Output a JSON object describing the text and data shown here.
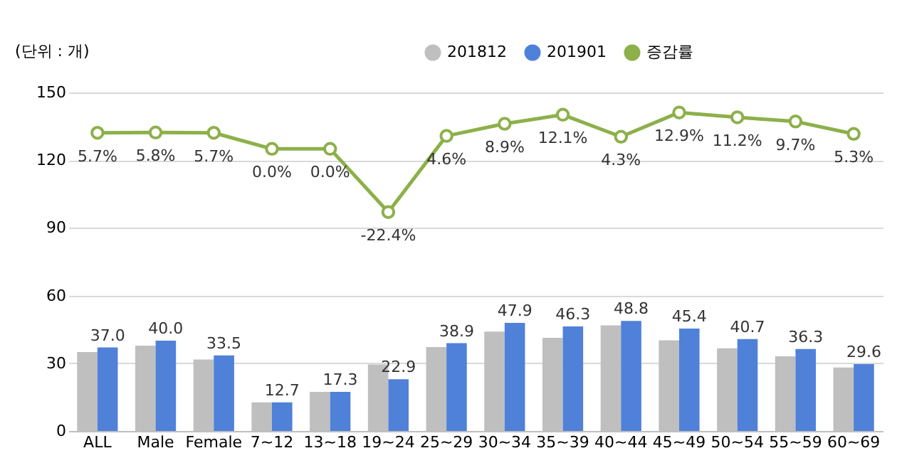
{
  "chart_data": {
    "type": "bar",
    "ylabel": "(단위 : 개)",
    "categories": [
      "ALL",
      "Male",
      "Female",
      "7~12",
      "13~18",
      "19~24",
      "25~29",
      "30~34",
      "35~39",
      "40~44",
      "45~49",
      "50~54",
      "55~59",
      "60~69"
    ],
    "series": [
      {
        "name": "201812",
        "color": "#bfbfbf",
        "values": [
          35.0,
          37.8,
          31.7,
          12.7,
          17.3,
          29.5,
          37.2,
          44.0,
          41.3,
          46.8,
          40.2,
          36.6,
          33.1,
          28.1
        ]
      },
      {
        "name": "201901",
        "color": "#4f81d9",
        "values": [
          37.0,
          40.0,
          33.5,
          12.7,
          17.3,
          22.9,
          38.9,
          47.9,
          46.3,
          48.8,
          45.4,
          40.7,
          36.3,
          29.6
        ],
        "value_labels": [
          "37.0",
          "40.0",
          "33.5",
          "12.7",
          "17.3",
          "22.9",
          "38.9",
          "47.9",
          "46.3",
          "48.8",
          "45.4",
          "40.7",
          "36.3",
          "29.6"
        ]
      },
      {
        "name": "증감률",
        "type": "line",
        "axis": "y2",
        "color": "#8db04a",
        "marker": "circle",
        "values": [
          5.7,
          5.8,
          5.7,
          0.0,
          0.0,
          -22.4,
          4.6,
          8.9,
          12.1,
          4.3,
          12.9,
          11.2,
          9.7,
          5.3
        ],
        "value_labels": [
          "5.7%",
          "5.8%",
          "5.7%",
          "0.0%",
          "0.0%",
          "-22.4%",
          "4.6%",
          "8.9%",
          "12.1%",
          "4.3%",
          "12.9%",
          "11.2%",
          "9.7%",
          "5.3%"
        ]
      }
    ],
    "ylim": [
      0,
      150
    ],
    "yticks": [
      0,
      30,
      60,
      90,
      120,
      150
    ],
    "y2lim": [
      -100,
      20
    ],
    "grid": "y",
    "legend": "top right"
  }
}
